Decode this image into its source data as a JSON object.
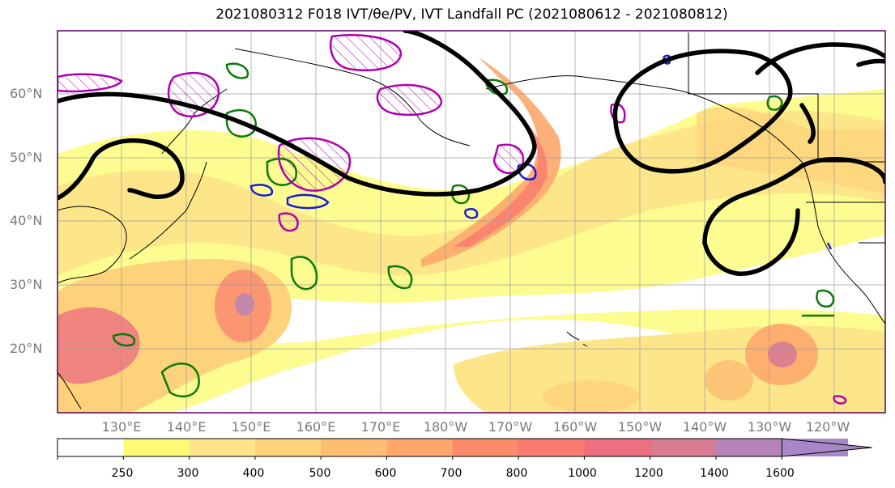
{
  "title": "2021080312 F018 IVT/θe/PV, IVT Landfall PC (2021080612 - 2021080812)",
  "lat_labels": [
    "60°N",
    "50°N",
    "40°N",
    "30°N",
    "20°N"
  ],
  "lon_labels": [
    "130°E",
    "140°E",
    "150°E",
    "160°E",
    "170°E",
    "180°W",
    "170°W",
    "160°W",
    "150°W",
    "140°W",
    "130°W",
    "120°W"
  ],
  "colorbar": {
    "ticks": [
      "250",
      "300",
      "400",
      "500",
      "600",
      "700",
      "800",
      "1000",
      "1200",
      "1400",
      "1600"
    ],
    "colors": [
      "#ffffff",
      "#fdfb75",
      "#fde68a",
      "#fdd27a",
      "#fdbd72",
      "#fca86c",
      "#fb8c6a",
      "#f97a6f",
      "#ec7080",
      "#d87b93",
      "#b584b6",
      "#a887c8"
    ]
  },
  "legend": {
    "ivt_color": "#fdd27a",
    "pc_contour_color": "#000000",
    "theta_e_color": "#0a7a0a",
    "pv_color_blue": "#1a1adb",
    "pv_color_magenta": "#b000b0"
  }
}
